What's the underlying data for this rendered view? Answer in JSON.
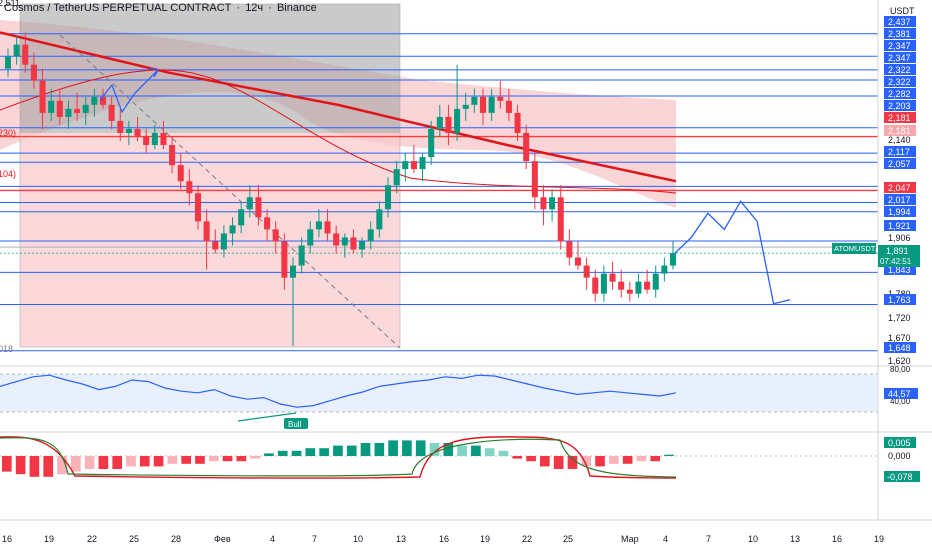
{
  "header": {
    "symbol_title": "Cosmos / TetherUS PERPETUAL CONTRACT",
    "interval": "12ч",
    "exchange": "Binance"
  },
  "axis": {
    "currency": "USDT",
    "price_ticks": [
      {
        "label": "2,437",
        "v": 2.437
      },
      {
        "label": "2,381",
        "v": 2.381
      },
      {
        "label": "2,347",
        "v": 2.347
      },
      {
        "label": "2,347",
        "v": 2.347
      },
      {
        "label": "2,322",
        "v": 2.322
      },
      {
        "label": "2,322",
        "v": 2.322
      },
      {
        "label": "2,282",
        "v": 2.282
      },
      {
        "label": "2,203",
        "v": 2.203
      },
      {
        "label": "2,181",
        "v": 2.181
      },
      {
        "label": "2,140",
        "v": 2.14
      },
      {
        "label": "2,117",
        "v": 2.117
      },
      {
        "label": "2,057",
        "v": 2.057
      },
      {
        "label": "2,047",
        "v": 2.047
      },
      {
        "label": "2,017",
        "v": 2.017
      },
      {
        "label": "1,994",
        "v": 1.994
      },
      {
        "label": "1,921",
        "v": 1.921
      },
      {
        "label": "1,906",
        "v": 1.906
      },
      {
        "label": "1,891",
        "v": 1.891
      },
      {
        "label": "1,843",
        "v": 1.843
      },
      {
        "label": "1,780",
        "v": 1.78
      },
      {
        "label": "1,763",
        "v": 1.763
      },
      {
        "label": "1,720",
        "v": 1.72
      },
      {
        "label": "1,670",
        "v": 1.67
      },
      {
        "label": "1,648",
        "v": 1.648
      },
      {
        "label": "1,620",
        "v": 1.62
      }
    ],
    "boxed_ticks": [
      "2,437",
      "2,381",
      "2,347",
      "2,347",
      "2,322",
      "2,322",
      "2,282",
      "2,203",
      "2,117",
      "2,057",
      "2,017",
      "1,994",
      "1,921",
      "1,843",
      "1,763",
      "1,648"
    ],
    "red_boxed_ticks": [
      "2,181",
      "2,047"
    ],
    "partial_top_label": "2,511",
    "left_cut_labels": [
      "230)",
      "104)",
      "018"
    ],
    "x_labels": [
      "16",
      "19",
      "22",
      "25",
      "28",
      "Фев",
      "4",
      "7",
      "10",
      "13",
      "16",
      "19",
      "22",
      "25",
      "Мар",
      "4",
      "7",
      "10",
      "13",
      "16",
      "19"
    ]
  },
  "price_badge": {
    "ticker": "ATOMUSDT.P",
    "price": "1,891",
    "countdown": "07:42:51"
  },
  "rsi": {
    "top_label": "80,00",
    "bottom_label": "40,00",
    "value": "44,57",
    "bull_label": "Bull"
  },
  "macd": {
    "val1": "0,005",
    "val0": "0,000",
    "val2": "-0,078"
  },
  "colors": {
    "up": "#089981",
    "down": "#f23645",
    "level_line": "#2962ff",
    "ma_red": "#e0151b",
    "cloud": "#f8c3c6",
    "gray_zone": "#9e9e9e"
  },
  "chart_data": {
    "type": "candlestick",
    "title": "Cosmos / TetherUS PERPETUAL CONTRACT · 12ч · Binance",
    "y_unit": "USDT",
    "ylim": [
      1.62,
      2.511
    ],
    "last_price": 1.891,
    "horizontal_levels": [
      2.437,
      2.381,
      2.347,
      2.322,
      2.282,
      2.203,
      2.181,
      2.14,
      2.117,
      2.057,
      2.047,
      2.017,
      1.994,
      1.921,
      1.906,
      1.843,
      1.763,
      1.648
    ],
    "candles": [
      [
        2.35,
        2.4,
        2.33,
        2.38
      ],
      [
        2.38,
        2.43,
        2.36,
        2.41
      ],
      [
        2.41,
        2.44,
        2.34,
        2.36
      ],
      [
        2.36,
        2.39,
        2.3,
        2.32
      ],
      [
        2.32,
        2.35,
        2.2,
        2.24
      ],
      [
        2.24,
        2.3,
        2.22,
        2.27
      ],
      [
        2.27,
        2.3,
        2.21,
        2.23
      ],
      [
        2.23,
        2.27,
        2.2,
        2.25
      ],
      [
        2.25,
        2.29,
        2.22,
        2.24
      ],
      [
        2.24,
        2.28,
        2.21,
        2.26
      ],
      [
        2.26,
        2.3,
        2.23,
        2.28
      ],
      [
        2.28,
        2.3,
        2.25,
        2.26
      ],
      [
        2.26,
        2.28,
        2.2,
        2.22
      ],
      [
        2.22,
        2.25,
        2.17,
        2.19
      ],
      [
        2.19,
        2.22,
        2.16,
        2.2
      ],
      [
        2.2,
        2.23,
        2.17,
        2.18
      ],
      [
        2.18,
        2.2,
        2.14,
        2.16
      ],
      [
        2.16,
        2.21,
        2.15,
        2.19
      ],
      [
        2.19,
        2.22,
        2.15,
        2.16
      ],
      [
        2.16,
        2.18,
        2.09,
        2.11
      ],
      [
        2.11,
        2.14,
        2.05,
        2.07
      ],
      [
        2.07,
        2.1,
        2.01,
        2.04
      ],
      [
        2.04,
        2.06,
        1.95,
        1.97
      ],
      [
        1.97,
        2.0,
        1.85,
        1.92
      ],
      [
        1.92,
        1.95,
        1.89,
        1.9
      ],
      [
        1.9,
        1.96,
        1.88,
        1.94
      ],
      [
        1.94,
        1.98,
        1.91,
        1.96
      ],
      [
        1.96,
        2.02,
        1.94,
        2.0
      ],
      [
        2.0,
        2.06,
        1.98,
        2.03
      ],
      [
        2.03,
        2.06,
        1.96,
        1.98
      ],
      [
        1.98,
        2.0,
        1.92,
        1.95
      ],
      [
        1.95,
        1.97,
        1.89,
        1.92
      ],
      [
        1.92,
        1.94,
        1.8,
        1.83
      ],
      [
        1.83,
        1.88,
        1.66,
        1.86
      ],
      [
        1.86,
        1.93,
        1.84,
        1.91
      ],
      [
        1.91,
        1.97,
        1.89,
        1.95
      ],
      [
        1.95,
        2.0,
        1.93,
        1.97
      ],
      [
        1.97,
        2.0,
        1.92,
        1.94
      ],
      [
        1.94,
        1.96,
        1.89,
        1.91
      ],
      [
        1.91,
        1.94,
        1.88,
        1.93
      ],
      [
        1.93,
        1.95,
        1.89,
        1.9
      ],
      [
        1.9,
        1.93,
        1.88,
        1.92
      ],
      [
        1.92,
        1.97,
        1.9,
        1.95
      ],
      [
        1.95,
        2.02,
        1.93,
        2.0
      ],
      [
        2.0,
        2.08,
        1.98,
        2.06
      ],
      [
        2.06,
        2.12,
        2.04,
        2.1
      ],
      [
        2.1,
        2.14,
        2.07,
        2.12
      ],
      [
        2.12,
        2.16,
        2.09,
        2.1
      ],
      [
        2.1,
        2.14,
        2.07,
        2.13
      ],
      [
        2.13,
        2.22,
        2.11,
        2.2
      ],
      [
        2.2,
        2.26,
        2.18,
        2.23
      ],
      [
        2.23,
        2.26,
        2.16,
        2.19
      ],
      [
        2.19,
        2.36,
        2.17,
        2.25
      ],
      [
        2.25,
        2.29,
        2.22,
        2.26
      ],
      [
        2.26,
        2.3,
        2.24,
        2.28
      ],
      [
        2.28,
        2.3,
        2.21,
        2.24
      ],
      [
        2.24,
        2.3,
        2.22,
        2.28
      ],
      [
        2.28,
        2.32,
        2.25,
        2.27
      ],
      [
        2.27,
        2.3,
        2.22,
        2.24
      ],
      [
        2.24,
        2.26,
        2.17,
        2.19
      ],
      [
        2.19,
        2.21,
        2.1,
        2.12
      ],
      [
        2.12,
        2.14,
        2.0,
        2.03
      ],
      [
        2.03,
        2.06,
        1.96,
        2.0
      ],
      [
        2.0,
        2.05,
        1.97,
        2.03
      ],
      [
        2.03,
        2.06,
        1.9,
        1.92
      ],
      [
        1.92,
        1.95,
        1.86,
        1.88
      ],
      [
        1.88,
        1.92,
        1.85,
        1.86
      ],
      [
        1.86,
        1.88,
        1.8,
        1.83
      ],
      [
        1.83,
        1.85,
        1.77,
        1.79
      ],
      [
        1.79,
        1.86,
        1.77,
        1.84
      ],
      [
        1.84,
        1.87,
        1.8,
        1.82
      ],
      [
        1.82,
        1.85,
        1.78,
        1.8
      ],
      [
        1.8,
        1.82,
        1.77,
        1.79
      ],
      [
        1.79,
        1.84,
        1.78,
        1.82
      ],
      [
        1.82,
        1.85,
        1.79,
        1.8
      ],
      [
        1.8,
        1.86,
        1.78,
        1.84
      ],
      [
        1.84,
        1.88,
        1.82,
        1.86
      ],
      [
        1.86,
        1.92,
        1.85,
        1.891
      ]
    ],
    "ma_long": [
      2.44,
      2.34,
      2.26,
      2.16,
      2.07
    ],
    "ma_short": [
      2.25,
      2.31,
      2.27,
      2.11,
      2.05,
      2.01
    ],
    "forecast_path": [
      [
        1.891,
        0
      ],
      [
        1.93,
        1
      ],
      [
        1.99,
        2
      ],
      [
        1.95,
        3
      ],
      [
        2.02,
        4
      ],
      [
        1.97,
        5
      ],
      [
        1.765,
        6
      ],
      [
        1.775,
        7
      ]
    ],
    "rsi_series": [
      52,
      58,
      64,
      66,
      60,
      55,
      48,
      52,
      60,
      58,
      50,
      46,
      44,
      48,
      40,
      36,
      38,
      30,
      26,
      28,
      34,
      40,
      45,
      52,
      55,
      58,
      60,
      64,
      62,
      66,
      65,
      60,
      55,
      50,
      46,
      42,
      44,
      46,
      44,
      42,
      40,
      44
    ],
    "macd_histogram": [
      -0.06,
      -0.07,
      -0.08,
      -0.08,
      -0.07,
      -0.06,
      -0.05,
      -0.05,
      -0.05,
      -0.04,
      -0.04,
      -0.04,
      -0.03,
      -0.03,
      -0.03,
      -0.02,
      -0.02,
      -0.02,
      -0.01,
      0.01,
      0.02,
      0.02,
      0.03,
      0.03,
      0.04,
      0.04,
      0.05,
      0.05,
      0.06,
      0.06,
      0.06,
      0.05,
      0.05,
      0.04,
      0.04,
      0.03,
      0.02,
      -0.01,
      -0.02,
      -0.04,
      -0.05,
      -0.05,
      -0.04,
      -0.04,
      -0.03,
      -0.03,
      -0.02,
      -0.02,
      0.005
    ]
  }
}
